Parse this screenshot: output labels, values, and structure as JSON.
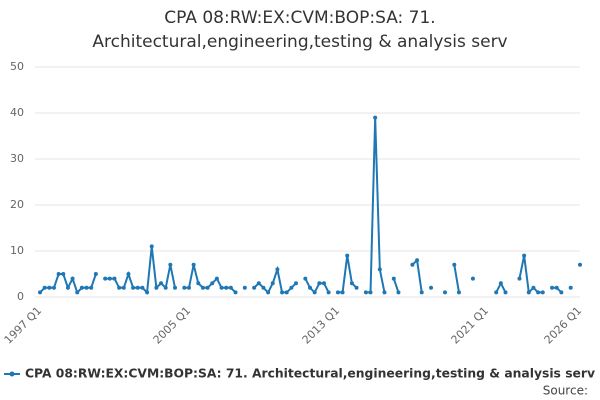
{
  "chart_data": {
    "type": "line",
    "title": [
      "CPA 08:RW:EX:CVM:BOP:SA: 71.",
      "Architectural,engineering,testing & analysis serv"
    ],
    "categories": [
      "1997 Q1",
      null,
      null,
      null,
      null,
      null,
      null,
      null,
      null,
      null,
      null,
      null,
      null,
      null,
      null,
      null,
      null,
      null,
      null,
      null,
      null,
      null,
      null,
      null,
      null,
      null,
      null,
      null,
      null,
      null,
      null,
      null,
      "2005 Q1",
      null,
      null,
      null,
      null,
      null,
      null,
      null,
      null,
      null,
      null,
      null,
      null,
      null,
      null,
      null,
      null,
      null,
      null,
      null,
      null,
      null,
      null,
      null,
      null,
      null,
      null,
      null,
      null,
      null,
      null,
      null,
      "2013 Q1",
      null,
      null,
      null,
      null,
      null,
      null,
      null,
      null,
      null,
      null,
      null,
      null,
      null,
      null,
      null,
      null,
      null,
      null,
      null,
      null,
      null,
      null,
      null,
      null,
      null,
      null,
      null,
      null,
      null,
      null,
      null,
      "2021 Q1",
      null,
      null,
      null,
      null,
      null,
      null,
      null,
      null,
      null,
      null,
      null,
      null,
      null,
      null,
      null,
      null,
      null,
      null,
      null,
      "2026 Q1"
    ],
    "series": [
      {
        "name": "CPA 08:RW:EX:CVM:BOP:SA: 71. Architectural,engineering,testing & analysis serv",
        "color": "#1f77b4",
        "values": [
          1,
          2,
          2,
          2,
          5,
          5,
          2,
          4,
          1,
          2,
          2,
          2,
          5,
          null,
          4,
          4,
          4,
          2,
          2,
          5,
          2,
          2,
          2,
          1,
          11,
          2,
          3,
          2,
          7,
          2,
          null,
          2,
          2,
          7,
          3,
          2,
          2,
          3,
          4,
          2,
          2,
          2,
          1,
          null,
          2,
          null,
          2,
          3,
          2,
          1,
          3,
          6,
          1,
          1,
          2,
          3,
          null,
          4,
          2,
          1,
          3,
          3,
          1,
          null,
          1,
          1,
          9,
          3,
          2,
          null,
          1,
          1,
          39,
          6,
          1,
          null,
          4,
          1,
          null,
          null,
          7,
          8,
          1,
          null,
          2,
          null,
          null,
          1,
          null,
          7,
          1,
          null,
          null,
          4,
          null,
          null,
          null,
          null,
          1,
          3,
          1,
          null,
          null,
          4,
          9,
          1,
          2,
          1,
          1,
          null,
          2,
          2,
          1,
          null,
          2,
          null,
          7
        ]
      }
    ],
    "ylim": [
      0,
      50
    ],
    "yticks": [
      0,
      10,
      20,
      30,
      40,
      50
    ],
    "grid": true,
    "source": "Source:"
  }
}
